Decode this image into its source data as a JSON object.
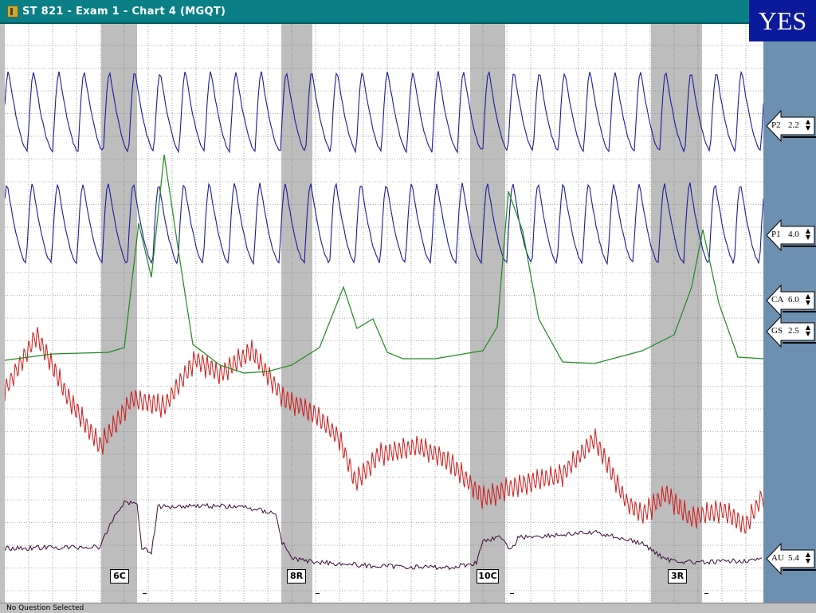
{
  "window": {
    "title": "ST 821 - Exam 1 - Chart 4 (MGQT)"
  },
  "badge": {
    "text": "YES"
  },
  "status": {
    "text": "No Question Selected"
  },
  "channels": [
    {
      "name": "P2",
      "gain": "2.2"
    },
    {
      "name": "P1",
      "gain": "4.0"
    },
    {
      "name": "CA",
      "gain": "6.0"
    },
    {
      "name": "GS",
      "gain": "2.5"
    },
    {
      "name": "AU",
      "gain": "5.4"
    }
  ],
  "questions": [
    {
      "label": "6C"
    },
    {
      "label": "8R"
    },
    {
      "label": "10C"
    },
    {
      "label": "3R"
    }
  ],
  "colors": {
    "title_bar": "#0a7f86",
    "side_panel": "#6d8fb0",
    "badge": "#0a1a9a",
    "pneumo_trace": "#1a1a9a",
    "gsr_trace": "#1e8a1e",
    "cardio_trace": "#d01818",
    "activity_trace": "#3a0a3a",
    "question_band": "#bdbdbd"
  },
  "icons": {
    "app": "polygraph-app-icon",
    "channel_arrow": "left-arrow-icon",
    "spinner": "up-down-spinner-icon"
  }
}
